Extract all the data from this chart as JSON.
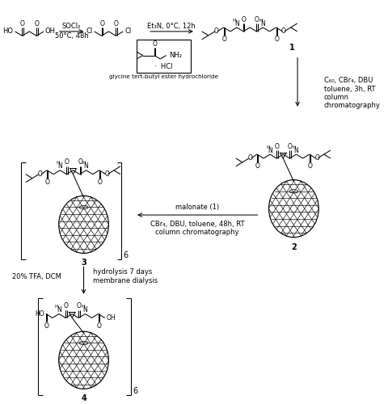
{
  "bg": "#ffffff",
  "text_color": "#000000",
  "step1_above": "SOCl₂",
  "step1_below": "50°C, 48h",
  "step2_above": "Et₃N, 0°C, 12h",
  "step3_text": "C₆₀, CBr₄, DBU\ntoluene, 3h, RT\ncolumn\nchromatography",
  "step4_above": "malonate (1)",
  "step4_below": "CBr₄, DBU, toluene, 48h, RT\ncolumn chromatography",
  "step5_left": "20% TFA, DCM",
  "step5_right": "hydrolysis 7 days\nmembrane dialysis",
  "glycine_label": "glycine tert-butyl ester hydrochloride",
  "comp1": "1",
  "comp2": "2",
  "comp3": "3",
  "comp4": "4",
  "bracket_n": "6"
}
